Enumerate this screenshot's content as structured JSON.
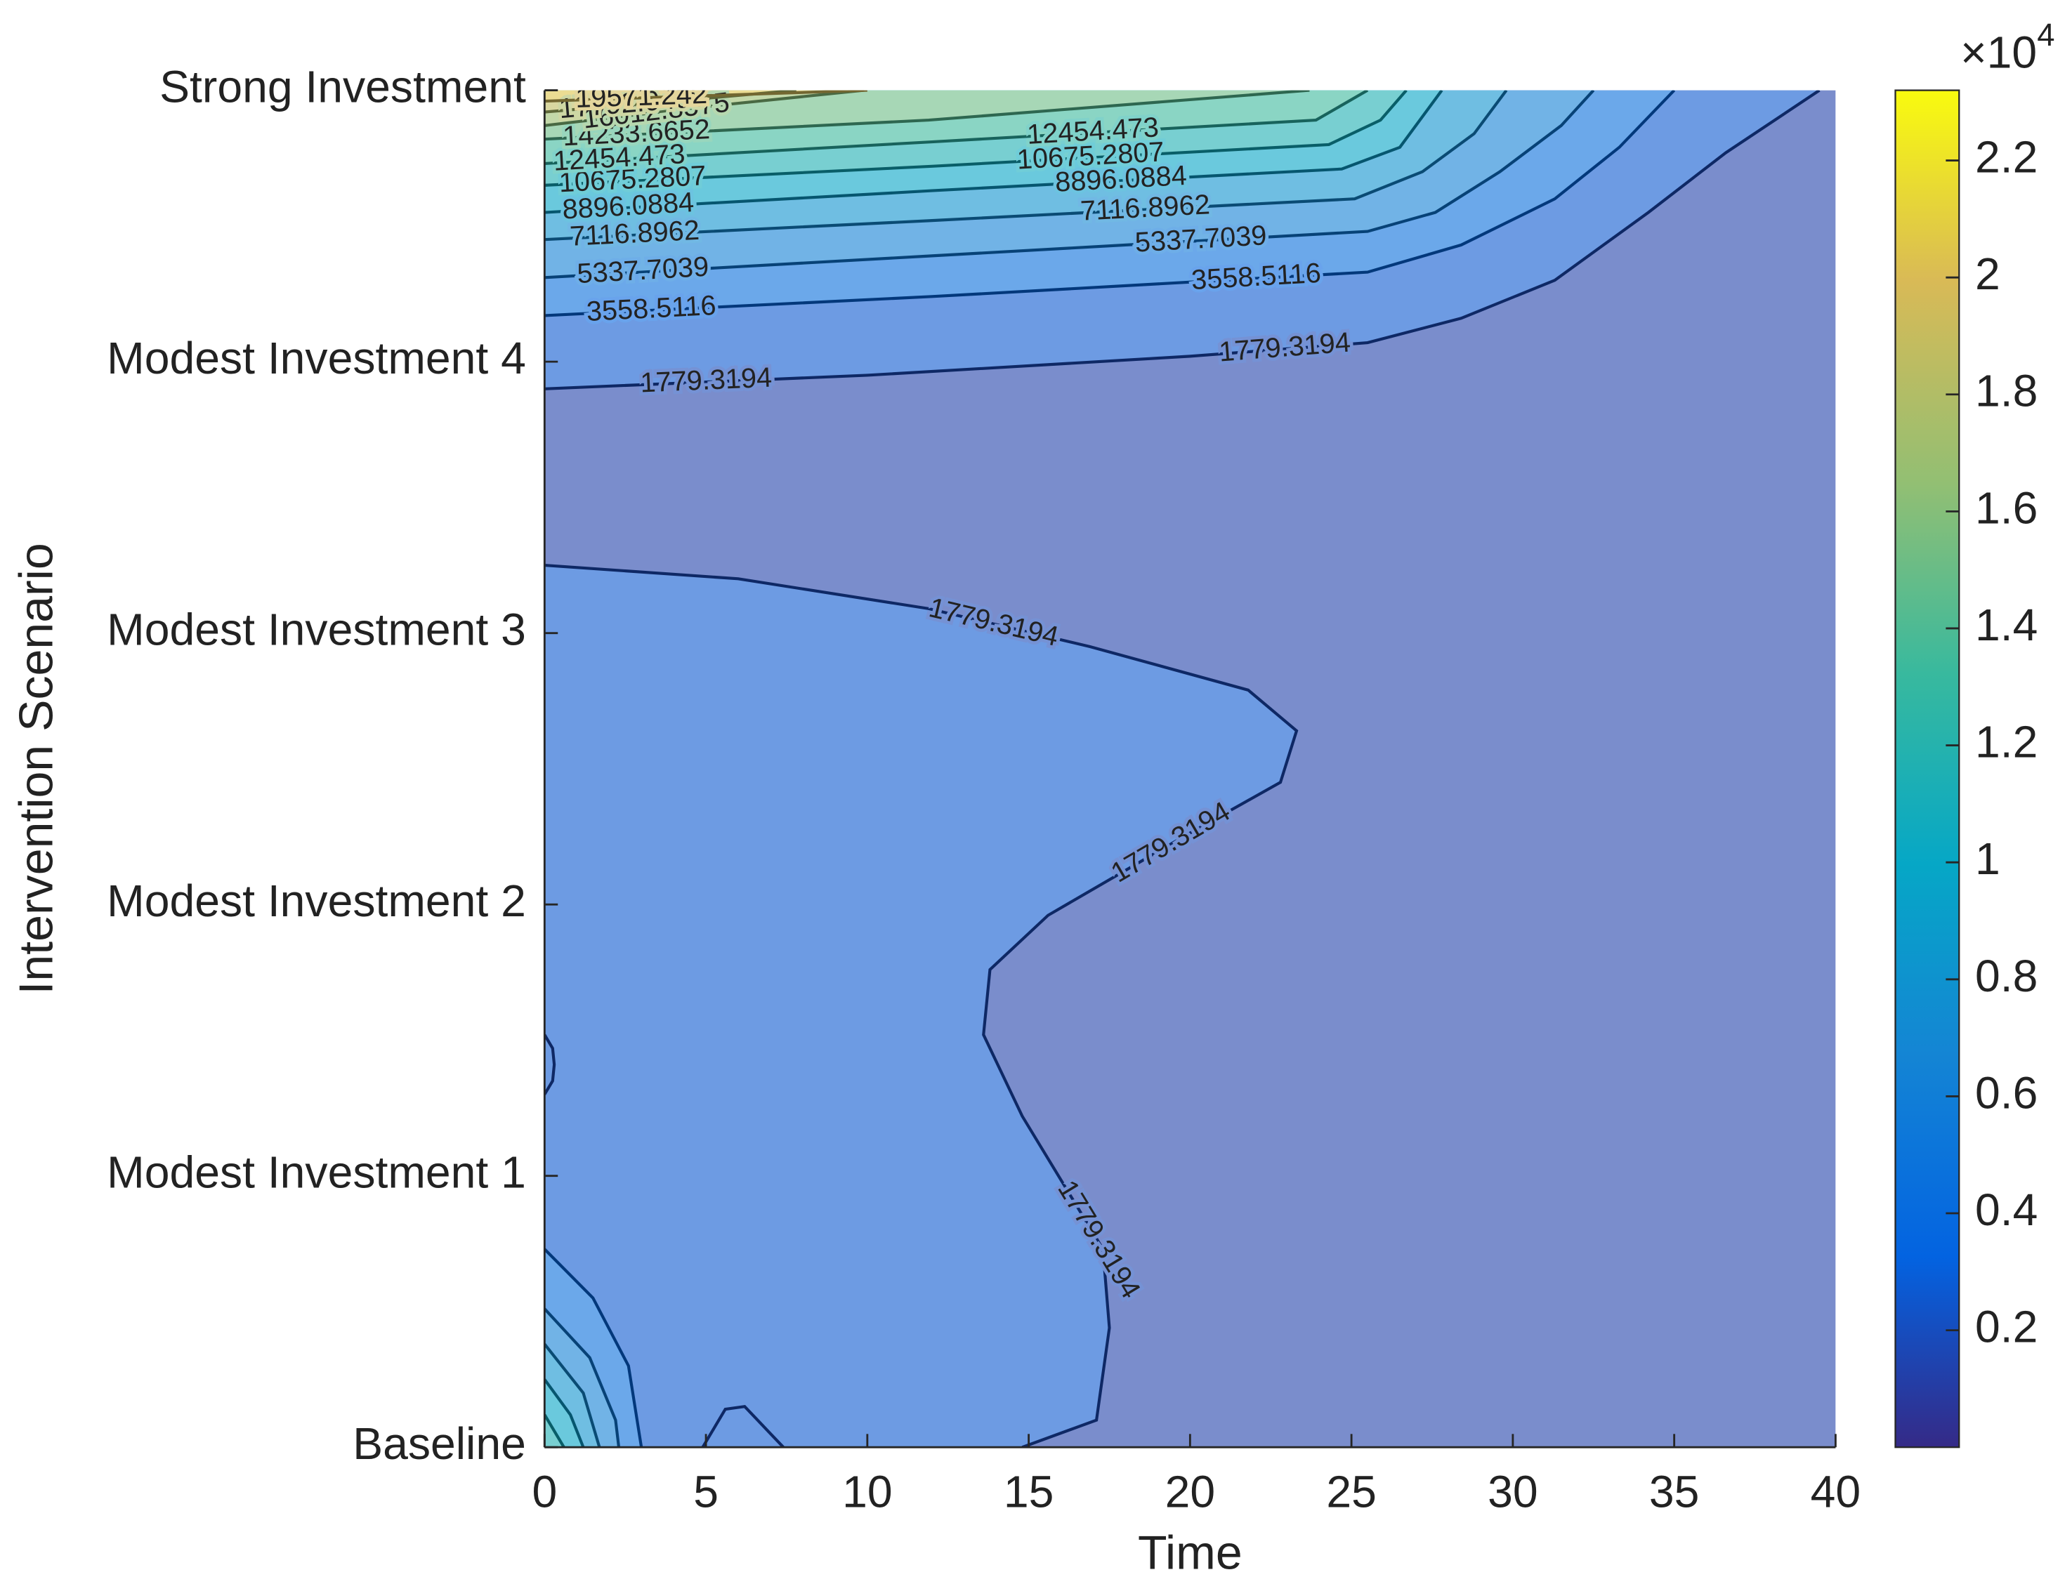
{
  "chart_data": {
    "type": "contour",
    "x_label": "Time",
    "y_label": "Intervention Scenario",
    "xlim": [
      0,
      40
    ],
    "xticks": [
      0,
      5,
      10,
      15,
      20,
      25,
      30,
      35,
      40
    ],
    "categories": [
      "Baseline",
      "Modest Investment 1",
      "Modest Investment 2",
      "Modest Investment 3",
      "Modest Investment 4",
      "Strong Investment"
    ],
    "colormap": "parula",
    "clim": [
      0,
      23200
    ],
    "cticks": [
      {
        "value": 2000,
        "label": "0.2"
      },
      {
        "value": 4000,
        "label": "0.4"
      },
      {
        "value": 6000,
        "label": "0.6"
      },
      {
        "value": 8000,
        "label": "0.8"
      },
      {
        "value": 10000,
        "label": "1"
      },
      {
        "value": 12000,
        "label": "1.2"
      },
      {
        "value": 14000,
        "label": "1.4"
      },
      {
        "value": 16000,
        "label": "1.6"
      },
      {
        "value": 18000,
        "label": "1.8"
      },
      {
        "value": 20000,
        "label": "2"
      },
      {
        "value": 22000,
        "label": "2.2"
      }
    ],
    "colorbar_multiplier": "×10",
    "colorbar_exponent": "4",
    "contours": [
      {
        "level": 1779.3194,
        "x": [
          0,
          10,
          20,
          25.5,
          28.4,
          31.3,
          34.2,
          36.6,
          39.5
        ],
        "y": [
          3.9,
          3.95,
          4.02,
          4.07,
          4.16,
          4.3,
          4.55,
          4.77,
          5.0
        ]
      },
      {
        "level": 1779.3194,
        "x": [
          0,
          6,
          11.9,
          16.9,
          21.8,
          23.3,
          22.8,
          19.8,
          15.6,
          13.8,
          13.6,
          14.8,
          17.3,
          17.5,
          17.1,
          14.8
        ],
        "y": [
          3.25,
          3.2,
          3.09,
          2.95,
          2.79,
          2.64,
          2.45,
          2.25,
          1.96,
          1.76,
          1.52,
          1.22,
          0.73,
          0.44,
          0.1,
          0
        ]
      },
      {
        "level": 1779.3194,
        "x": [
          0,
          0.25,
          0.3,
          0.25,
          0
        ],
        "y": [
          1.52,
          1.47,
          1.41,
          1.35,
          1.3
        ]
      },
      {
        "level": 1779.3194,
        "x": [
          4.9,
          5.6,
          6.2,
          7.0,
          7.4
        ],
        "y": [
          0,
          0.14,
          0.15,
          0.05,
          0
        ]
      },
      {
        "level": 3558.5116,
        "x": [
          0,
          1.5,
          2.6,
          3.0
        ],
        "y": [
          0.73,
          0.55,
          0.3,
          0
        ]
      },
      {
        "level": 5337.7039,
        "x": [
          0,
          1.4,
          2.2,
          2.3
        ],
        "y": [
          0.51,
          0.33,
          0.1,
          0
        ]
      },
      {
        "level": 7116.8962,
        "x": [
          0,
          1.2,
          1.7
        ],
        "y": [
          0.38,
          0.2,
          0
        ]
      },
      {
        "level": 8896.0884,
        "x": [
          0,
          0.8,
          1.2
        ],
        "y": [
          0.25,
          0.12,
          0
        ]
      },
      {
        "level": 10675.2807,
        "x": [
          0,
          0.6
        ],
        "y": [
          0.12,
          0
        ]
      },
      {
        "level": 3558.5116,
        "x": [
          0,
          12,
          25.5,
          28.4,
          31.3,
          33.3,
          35
        ],
        "y": [
          4.17,
          4.24,
          4.33,
          4.43,
          4.6,
          4.79,
          5.0
        ]
      },
      {
        "level": 5337.7039,
        "x": [
          0,
          12,
          25.5,
          27.6,
          29.6,
          31.5,
          32.5
        ],
        "y": [
          4.31,
          4.39,
          4.48,
          4.55,
          4.7,
          4.87,
          5.0
        ]
      },
      {
        "level": 7116.8962,
        "x": [
          0,
          12,
          25.1,
          27.2,
          28.8,
          29.8
        ],
        "y": [
          4.45,
          4.52,
          4.6,
          4.7,
          4.84,
          5.0
        ]
      },
      {
        "level": 8896.0884,
        "x": [
          0,
          12,
          24.7,
          26.5,
          27.8
        ],
        "y": [
          4.55,
          4.63,
          4.71,
          4.79,
          5.0
        ]
      },
      {
        "level": 10675.2807,
        "x": [
          0,
          12,
          24.3,
          25.9,
          26.7
        ],
        "y": [
          4.65,
          4.72,
          4.8,
          4.89,
          5.0
        ]
      },
      {
        "level": 12454.473,
        "x": [
          0,
          12,
          23.9,
          25.5
        ],
        "y": [
          4.73,
          4.81,
          4.89,
          5.0
        ]
      },
      {
        "level": 14233.6652,
        "x": [
          0,
          11.9,
          23.7
        ],
        "y": [
          4.82,
          4.89,
          5.0
        ]
      },
      {
        "level": 16012.8575,
        "x": [
          0,
          5,
          9.9
        ],
        "y": [
          4.87,
          4.94,
          5.0
        ]
      },
      {
        "level": 17792.0498,
        "x": [
          0,
          4,
          7.8
        ],
        "y": [
          4.92,
          4.96,
          5.0
        ]
      },
      {
        "level": 19571.242,
        "x": [
          0,
          5,
          10
        ],
        "y": [
          4.96,
          4.98,
          5.0
        ]
      }
    ]
  }
}
